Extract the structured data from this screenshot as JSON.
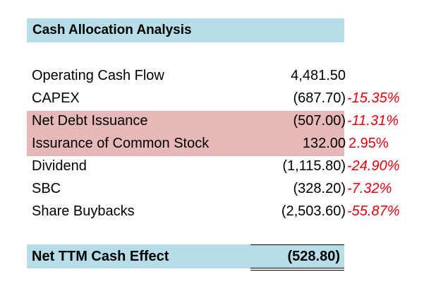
{
  "title": "Cash Allocation Analysis",
  "rows": [
    {
      "label": "Operating Cash Flow",
      "value": "4,481.50",
      "pct": ""
    },
    {
      "label": "CAPEX",
      "value": "(687.70)",
      "pct": "-15.35%"
    },
    {
      "label": "Net Debt Issuance",
      "value": "(507.00)",
      "pct": "-11.31%"
    },
    {
      "label": "Issurance of Common Stock",
      "value": "132.00",
      "pct": "2.95%"
    },
    {
      "label": "Dividend",
      "value": "(1,115.80)",
      "pct": "-24.90%"
    },
    {
      "label": "SBC",
      "value": "(328.20)",
      "pct": "-7.32%"
    },
    {
      "label": "Share Buybacks",
      "value": "(2,503.60)",
      "pct": "-55.87%"
    }
  ],
  "total": {
    "label": "Net TTM Cash Effect",
    "value": "(528.80)"
  },
  "colors": {
    "header_fill": "#b7dde8",
    "highlight_fill": "#e6b8b8",
    "negative_pct": "#e8000d"
  }
}
